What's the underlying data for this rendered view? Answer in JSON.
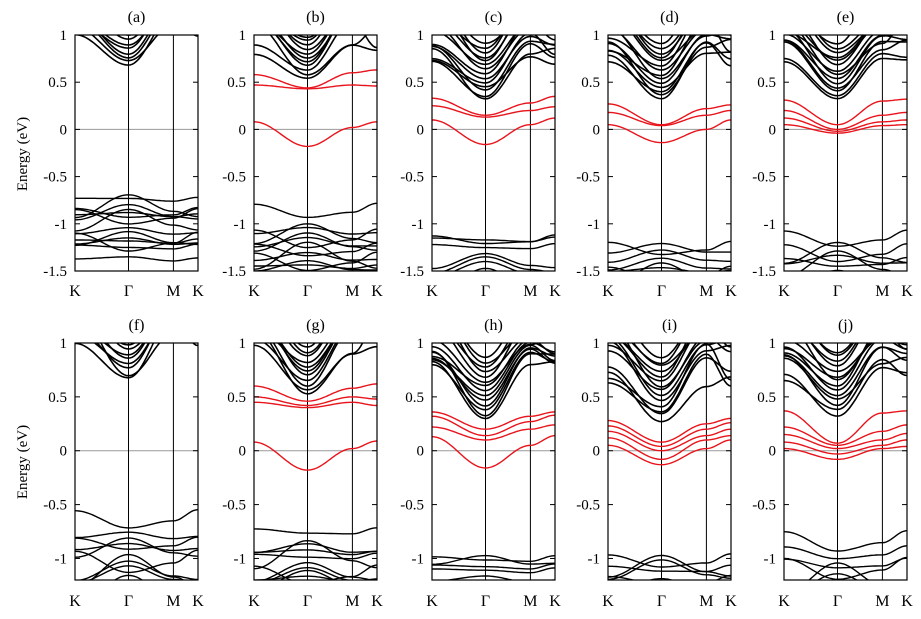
{
  "chart_data": {
    "type": "line",
    "layout": "2 rows x 5 panels, band-structure plots",
    "ylabel": "Energy (eV)",
    "xticks": [
      "K",
      "Γ",
      "M",
      "K"
    ],
    "colors": {
      "bands": "#000000",
      "highlight": "#e8141c",
      "fermi": "#999999"
    },
    "rows": [
      {
        "ylim": [
          -1.5,
          1
        ],
        "yticks": [
          "1",
          "0.5",
          "0",
          "-0.5",
          "-1",
          "-1.5"
        ],
        "ytick_values": [
          1,
          0.5,
          0,
          -0.5,
          -1,
          -1.5
        ]
      },
      {
        "ylim": [
          -1.2,
          1
        ],
        "yticks": [
          "1",
          "0.5",
          "0",
          "-0.5",
          "-1"
        ],
        "ytick_values": [
          1,
          0.5,
          0,
          -0.5,
          -1
        ]
      }
    ],
    "panels": [
      {
        "label": "(a)",
        "row": 0,
        "cb_min": 0.66,
        "vb_max": -0.68,
        "red_bands": [],
        "extra_black": []
      },
      {
        "label": "(b)",
        "row": 0,
        "cb_min": 0.52,
        "vb_max": -0.93,
        "red_bands": [
          [
            0.08,
            -0.18,
            0.02,
            0.08
          ],
          [
            0.47,
            0.43,
            0.47,
            0.46
          ],
          [
            0.58,
            0.44,
            0.6,
            0.63
          ]
        ],
        "extra_black": []
      },
      {
        "label": "(c)",
        "row": 0,
        "cb_min": 0.3,
        "vb_max": -1.15,
        "red_bands": [
          [
            0.1,
            -0.16,
            0.05,
            0.12
          ],
          [
            0.25,
            0.13,
            0.2,
            0.24
          ],
          [
            0.33,
            0.15,
            0.28,
            0.35
          ]
        ],
        "extra_black": []
      },
      {
        "label": "(d)",
        "row": 0,
        "cb_min": 0.3,
        "vb_max": -1.2,
        "red_bands": [
          [
            0.05,
            -0.14,
            0.0,
            0.1
          ],
          [
            0.18,
            0.04,
            0.15,
            0.2
          ],
          [
            0.27,
            0.05,
            0.22,
            0.26
          ]
        ],
        "extra_black": []
      },
      {
        "label": "(e)",
        "row": 0,
        "cb_min": 0.3,
        "vb_max": -1.17,
        "red_bands": [
          [
            0.05,
            -0.04,
            0.04,
            0.05
          ],
          [
            0.12,
            -0.02,
            0.08,
            0.1
          ],
          [
            0.2,
            0.0,
            0.15,
            0.18
          ],
          [
            0.31,
            0.05,
            0.3,
            0.32
          ]
        ],
        "extra_black": []
      },
      {
        "label": "(f)",
        "row": 1,
        "cb_min": 0.65,
        "vb_max": -0.7,
        "red_bands": [],
        "extra_black": []
      },
      {
        "label": "(g)",
        "row": 1,
        "cb_min": 0.5,
        "vb_max": -0.76,
        "red_bands": [
          [
            0.08,
            -0.18,
            0.02,
            0.09
          ],
          [
            0.45,
            0.4,
            0.45,
            0.42
          ],
          [
            0.5,
            0.42,
            0.5,
            0.48
          ],
          [
            0.6,
            0.46,
            0.58,
            0.62
          ]
        ],
        "extra_black": []
      },
      {
        "label": "(h)",
        "row": 1,
        "cb_min": 0.27,
        "vb_max": -0.95,
        "red_bands": [
          [
            0.13,
            -0.16,
            0.05,
            0.14
          ],
          [
            0.22,
            0.1,
            0.2,
            0.24
          ],
          [
            0.32,
            0.14,
            0.27,
            0.33
          ],
          [
            0.36,
            0.2,
            0.32,
            0.36
          ]
        ],
        "extra_black": []
      },
      {
        "label": "(i)",
        "row": 1,
        "cb_min": 0.27,
        "vb_max": -0.96,
        "red_bands": [
          [
            0.05,
            -0.13,
            0.02,
            0.1
          ],
          [
            0.12,
            -0.08,
            0.1,
            0.14
          ],
          [
            0.18,
            0.0,
            0.14,
            0.2
          ],
          [
            0.23,
            0.04,
            0.2,
            0.26
          ],
          [
            0.28,
            0.08,
            0.25,
            0.3
          ]
        ],
        "extra_black": []
      },
      {
        "label": "(j)",
        "row": 1,
        "cb_min": 0.32,
        "vb_max": -0.93,
        "red_bands": [
          [
            0.02,
            -0.08,
            0.02,
            0.04
          ],
          [
            0.08,
            -0.03,
            0.05,
            0.1
          ],
          [
            0.15,
            0.02,
            0.1,
            0.16
          ],
          [
            0.22,
            0.05,
            0.18,
            0.24
          ],
          [
            0.37,
            0.07,
            0.35,
            0.37
          ]
        ],
        "extra_black": []
      }
    ]
  }
}
